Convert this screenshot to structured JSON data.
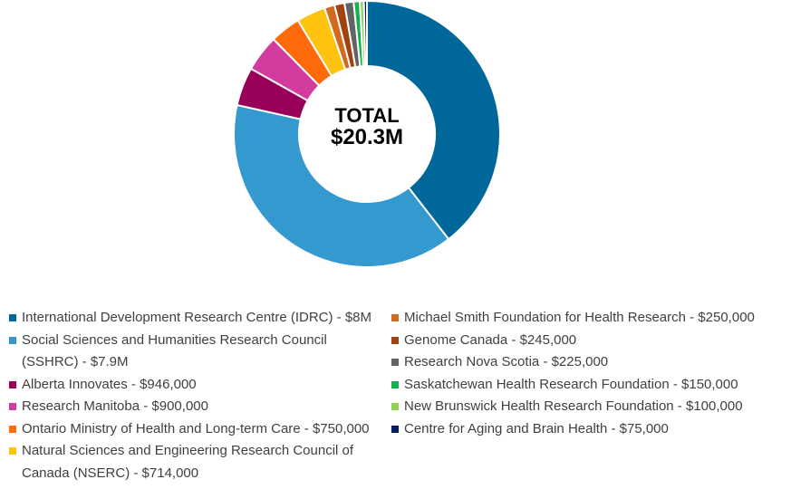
{
  "chart_data": {
    "type": "pie",
    "center_label": {
      "line1": "TOTAL",
      "line2": "$20.3M"
    },
    "slices": [
      {
        "label": "International Development Research Centre (IDRC) - $8M",
        "value": 8000000,
        "color": "#00679a"
      },
      {
        "label": "Social Sciences and Humanities Research Council (SSHRC) - $7.9M",
        "value": 7900000,
        "color": "#3399cf"
      },
      {
        "label": "Alberta Innovates - $946,000",
        "value": 946000,
        "color": "#99005a"
      },
      {
        "label": "Research Manitoba - $900,000",
        "value": 900000,
        "color": "#d23c9f"
      },
      {
        "label": "Ontario Ministry of Health and Long-term Care - $750,000",
        "value": 750000,
        "color": "#ff6a0a"
      },
      {
        "label": "Natural Sciences and Engineering Research Council of Canada (NSERC) - $714,000",
        "value": 714000,
        "color": "#ffc20e"
      },
      {
        "label": "Michael Smith Foundation for Health Research - $250,000",
        "value": 250000,
        "color": "#d2691e"
      },
      {
        "label": "Genome Canada - $245,000",
        "value": 245000,
        "color": "#a14210"
      },
      {
        "label": "Research Nova Scotia - $225,000",
        "value": 225000,
        "color": "#636363"
      },
      {
        "label": "Saskatchewan Health Research Foundation - $150,000",
        "value": 150000,
        "color": "#14b04a"
      },
      {
        "label": "New Brunswick Health Research Foundation - $100,000",
        "value": 100000,
        "color": "#92d050"
      },
      {
        "label": "Centre for Aging and Brain Health - $75,000",
        "value": 75000,
        "color": "#002060"
      }
    ],
    "legend": {
      "position": "bottom",
      "columns": 2
    }
  }
}
